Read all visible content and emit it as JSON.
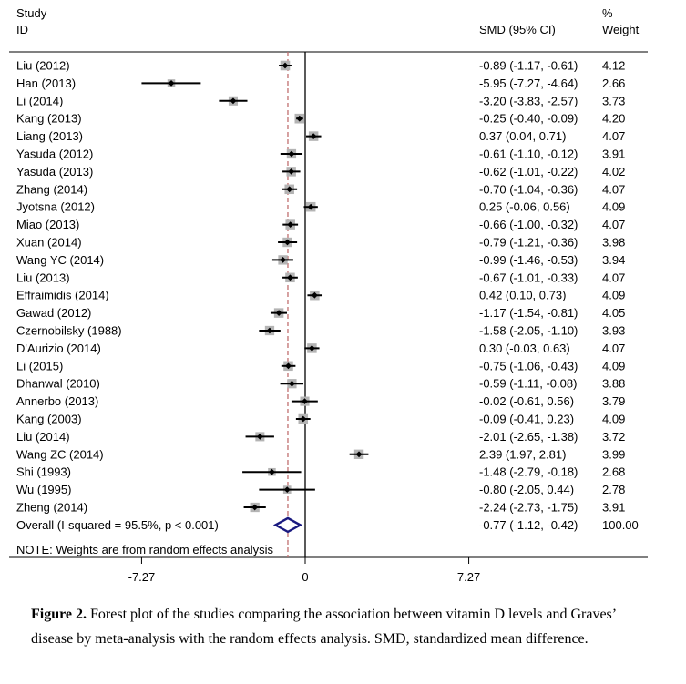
{
  "chart_data": {
    "type": "forest",
    "headers": {
      "study_line1": "Study",
      "study_line2": "ID",
      "smd": "SMD (95% CI)",
      "weight_line1": "%",
      "weight_line2": "Weight"
    },
    "studies": [
      {
        "label": "Liu (2012)",
        "smd": -0.89,
        "lo": -1.17,
        "hi": -0.61,
        "ci_text": "-0.89 (-1.17, -0.61)",
        "weight": 4.12,
        "weight_text": "4.12"
      },
      {
        "label": "Han (2013)",
        "smd": -5.95,
        "lo": -7.27,
        "hi": -4.64,
        "ci_text": "-5.95 (-7.27, -4.64)",
        "weight": 2.66,
        "weight_text": "2.66"
      },
      {
        "label": "Li (2014)",
        "smd": -3.2,
        "lo": -3.83,
        "hi": -2.57,
        "ci_text": "-3.20 (-3.83, -2.57)",
        "weight": 3.73,
        "weight_text": "3.73"
      },
      {
        "label": "Kang (2013)",
        "smd": -0.25,
        "lo": -0.4,
        "hi": -0.09,
        "ci_text": "-0.25 (-0.40, -0.09)",
        "weight": 4.2,
        "weight_text": "4.20"
      },
      {
        "label": "Liang (2013)",
        "smd": 0.37,
        "lo": 0.04,
        "hi": 0.71,
        "ci_text": "0.37 (0.04, 0.71)",
        "weight": 4.07,
        "weight_text": "4.07"
      },
      {
        "label": "Yasuda (2012)",
        "smd": -0.61,
        "lo": -1.1,
        "hi": -0.12,
        "ci_text": "-0.61 (-1.10, -0.12)",
        "weight": 3.91,
        "weight_text": "3.91"
      },
      {
        "label": "Yasuda (2013)",
        "smd": -0.62,
        "lo": -1.01,
        "hi": -0.22,
        "ci_text": "-0.62 (-1.01, -0.22)",
        "weight": 4.02,
        "weight_text": "4.02"
      },
      {
        "label": "Zhang (2014)",
        "smd": -0.7,
        "lo": -1.04,
        "hi": -0.36,
        "ci_text": "-0.70 (-1.04, -0.36)",
        "weight": 4.07,
        "weight_text": "4.07"
      },
      {
        "label": "Jyotsna (2012)",
        "smd": 0.25,
        "lo": -0.06,
        "hi": 0.56,
        "ci_text": "0.25 (-0.06, 0.56)",
        "weight": 4.09,
        "weight_text": "4.09"
      },
      {
        "label": "Miao (2013)",
        "smd": -0.66,
        "lo": -1.0,
        "hi": -0.32,
        "ci_text": "-0.66 (-1.00, -0.32)",
        "weight": 4.07,
        "weight_text": "4.07"
      },
      {
        "label": "Xuan (2014)",
        "smd": -0.79,
        "lo": -1.21,
        "hi": -0.36,
        "ci_text": "-0.79 (-1.21, -0.36)",
        "weight": 3.98,
        "weight_text": "3.98"
      },
      {
        "label": "Wang YC (2014)",
        "smd": -0.99,
        "lo": -1.46,
        "hi": -0.53,
        "ci_text": "-0.99 (-1.46, -0.53)",
        "weight": 3.94,
        "weight_text": "3.94"
      },
      {
        "label": "Liu (2013)",
        "smd": -0.67,
        "lo": -1.01,
        "hi": -0.33,
        "ci_text": "-0.67 (-1.01, -0.33)",
        "weight": 4.07,
        "weight_text": "4.07"
      },
      {
        "label": "Effraimidis (2014)",
        "smd": 0.42,
        "lo": 0.1,
        "hi": 0.73,
        "ci_text": "0.42 (0.10, 0.73)",
        "weight": 4.09,
        "weight_text": "4.09"
      },
      {
        "label": "Gawad (2012)",
        "smd": -1.17,
        "lo": -1.54,
        "hi": -0.81,
        "ci_text": "-1.17 (-1.54, -0.81)",
        "weight": 4.05,
        "weight_text": "4.05"
      },
      {
        "label": "Czernobilsky (1988)",
        "smd": -1.58,
        "lo": -2.05,
        "hi": -1.1,
        "ci_text": "-1.58 (-2.05, -1.10)",
        "weight": 3.93,
        "weight_text": "3.93"
      },
      {
        "label": "D'Aurizio (2014)",
        "smd": 0.3,
        "lo": -0.03,
        "hi": 0.63,
        "ci_text": "0.30 (-0.03, 0.63)",
        "weight": 4.07,
        "weight_text": "4.07"
      },
      {
        "label": "Li (2015)",
        "smd": -0.75,
        "lo": -1.06,
        "hi": -0.43,
        "ci_text": "-0.75 (-1.06, -0.43)",
        "weight": 4.09,
        "weight_text": "4.09"
      },
      {
        "label": "Dhanwal (2010)",
        "smd": -0.59,
        "lo": -1.11,
        "hi": -0.08,
        "ci_text": "-0.59 (-1.11, -0.08)",
        "weight": 3.88,
        "weight_text": "3.88"
      },
      {
        "label": "Annerbo (2013)",
        "smd": -0.02,
        "lo": -0.61,
        "hi": 0.56,
        "ci_text": "-0.02 (-0.61, 0.56)",
        "weight": 3.79,
        "weight_text": "3.79"
      },
      {
        "label": "Kang (2003)",
        "smd": -0.09,
        "lo": -0.41,
        "hi": 0.23,
        "ci_text": "-0.09 (-0.41, 0.23)",
        "weight": 4.09,
        "weight_text": "4.09"
      },
      {
        "label": "Liu (2014)",
        "smd": -2.01,
        "lo": -2.65,
        "hi": -1.38,
        "ci_text": "-2.01 (-2.65, -1.38)",
        "weight": 3.72,
        "weight_text": "3.72"
      },
      {
        "label": "Wang ZC (2014)",
        "smd": 2.39,
        "lo": 1.97,
        "hi": 2.81,
        "ci_text": "2.39 (1.97, 2.81)",
        "weight": 3.99,
        "weight_text": "3.99"
      },
      {
        "label": "Shi (1993)",
        "smd": -1.48,
        "lo": -2.79,
        "hi": -0.18,
        "ci_text": "-1.48 (-2.79, -0.18)",
        "weight": 2.68,
        "weight_text": "2.68"
      },
      {
        "label": "Wu (1995)",
        "smd": -0.8,
        "lo": -2.05,
        "hi": 0.44,
        "ci_text": "-0.80 (-2.05, 0.44)",
        "weight": 2.78,
        "weight_text": "2.78"
      },
      {
        "label": "Zheng (2014)",
        "smd": -2.24,
        "lo": -2.73,
        "hi": -1.75,
        "ci_text": "-2.24 (-2.73, -1.75)",
        "weight": 3.91,
        "weight_text": "3.91"
      }
    ],
    "overall": {
      "label": "Overall  (I-squared = 95.5%, p < 0.001)",
      "smd": -0.77,
      "lo": -1.12,
      "hi": -0.42,
      "ci_text": "-0.77 (-1.12, -0.42)",
      "weight_text": "100.00"
    },
    "note": "NOTE: Weights are from random effects analysis",
    "xlim": [
      -7.27,
      7.27
    ],
    "ticks": [
      -7.27,
      0,
      7.27
    ],
    "tick_labels": [
      "-7.27",
      "0",
      "7.27"
    ]
  },
  "caption": {
    "label": "Figure 2.",
    "text": " Forest plot of the studies comparing the association between vitamin D levels and Graves’ disease by meta-analysis with the random effects analysis. SMD, standardized mean difference."
  },
  "colors": {
    "line": "#000000",
    "weight_box": "#b4b4b4",
    "reference_dash": "#c07070",
    "overall_diamond": "#1a1a80"
  }
}
